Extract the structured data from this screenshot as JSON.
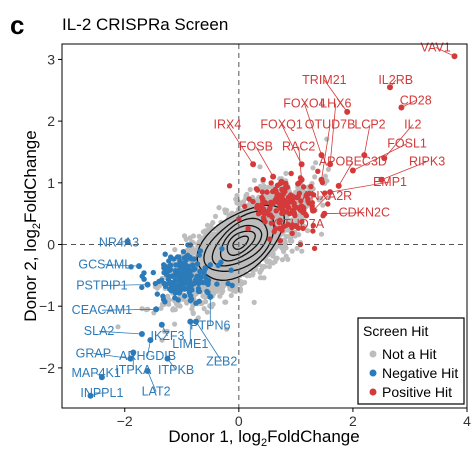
{
  "panel_letter": "c",
  "chart_data": {
    "type": "scatter",
    "title": "IL-2 CRISPRa Screen",
    "xlabel_prefix": "Donor 1, log",
    "xlabel_sub": "2",
    "xlabel_suffix": "FoldChange",
    "ylabel_prefix": "Donor 2, log",
    "ylabel_sub": "2",
    "ylabel_suffix": "FoldChange",
    "xlim": [
      -3.1,
      4.0
    ],
    "ylim": [
      -2.65,
      3.25
    ],
    "xticks": [
      -2,
      0,
      2,
      4
    ],
    "xtick_labels": [
      "−2",
      "0",
      "2",
      "4"
    ],
    "yticks": [
      -2,
      -1,
      0,
      1,
      2,
      3
    ],
    "ytick_labels": [
      "−2",
      "−1",
      "0",
      "1",
      "2",
      "3"
    ],
    "reference_lines": {
      "x": 0,
      "y": 0,
      "style": "dashed"
    },
    "grid": false,
    "legend": {
      "title": "Screen Hit",
      "placement": "bottom-right",
      "entries": [
        {
          "label": "Not a Hit",
          "color": "#bdbdbd"
        },
        {
          "label": "Negative Hit",
          "color": "#2b7bba"
        },
        {
          "label": "Positive Hit",
          "color": "#d43a3a"
        }
      ]
    },
    "colors": {
      "not_hit": "#bdbdbd",
      "negative": "#2b7bba",
      "positive": "#d43a3a",
      "contour": "#111111"
    },
    "positive_labels": [
      {
        "gene": "VAV1",
        "x": 3.78,
        "y": 3.05,
        "label_x": 3.45,
        "label_y": 3.13
      },
      {
        "gene": "IL2RB",
        "x": 2.65,
        "y": 2.55,
        "label_x": 2.75,
        "label_y": 2.6
      },
      {
        "gene": "TRIM21",
        "x": 1.9,
        "y": 2.15,
        "label_x": 1.5,
        "label_y": 2.6
      },
      {
        "gene": "CD28",
        "x": 2.85,
        "y": 2.22,
        "label_x": 3.1,
        "label_y": 2.27
      },
      {
        "gene": "FOXO4",
        "x": 1.45,
        "y": 1.45,
        "label_x": 1.15,
        "label_y": 2.22
      },
      {
        "gene": "LHX6",
        "x": 1.6,
        "y": 1.3,
        "label_x": 1.7,
        "label_y": 2.22
      },
      {
        "gene": "IRX4",
        "x": 0.25,
        "y": 1.3,
        "label_x": -0.2,
        "label_y": 1.88
      },
      {
        "gene": "FOXQ1",
        "x": 1.1,
        "y": 1.3,
        "label_x": 0.75,
        "label_y": 1.88
      },
      {
        "gene": "OTUD7B",
        "x": 1.45,
        "y": 1.05,
        "label_x": 1.6,
        "label_y": 1.88
      },
      {
        "gene": "LCP2",
        "x": 2.2,
        "y": 1.45,
        "label_x": 2.3,
        "label_y": 1.88
      },
      {
        "gene": "IL2",
        "x": 2.55,
        "y": 1.4,
        "label_x": 3.05,
        "label_y": 1.88
      },
      {
        "gene": "FOSB",
        "x": 0.6,
        "y": 1.1,
        "label_x": 0.3,
        "label_y": 1.52
      },
      {
        "gene": "RAC2",
        "x": 1.1,
        "y": 1.05,
        "label_x": 1.05,
        "label_y": 1.52
      },
      {
        "gene": "FOSL1",
        "x": 2.0,
        "y": 1.2,
        "label_x": 2.95,
        "label_y": 1.57
      },
      {
        "gene": "APOBEC3D",
        "x": 1.75,
        "y": 0.95,
        "label_x": 2.0,
        "label_y": 1.28
      },
      {
        "gene": "RIPK3",
        "x": 2.5,
        "y": 1.05,
        "label_x": 3.3,
        "label_y": 1.28
      },
      {
        "gene": "EMP1",
        "x": 1.6,
        "y": 0.85,
        "label_x": 2.65,
        "label_y": 0.95
      },
      {
        "gene": "ANXA2R",
        "x": 1.3,
        "y": 0.55,
        "label_x": 1.55,
        "label_y": 0.72
      },
      {
        "gene": "CDKN2C",
        "x": 1.5,
        "y": 0.5,
        "label_x": 2.2,
        "label_y": 0.45
      },
      {
        "gene": "OTUD7A",
        "x": 1.0,
        "y": 0.3,
        "label_x": 1.05,
        "label_y": 0.27
      }
    ],
    "negative_labels": [
      {
        "gene": "NR4A3",
        "x": -1.95,
        "y": 0.05,
        "label_x": -2.1,
        "label_y": -0.03
      },
      {
        "gene": "GCSAML",
        "x": -1.75,
        "y": -0.35,
        "label_x": -2.35,
        "label_y": -0.39
      },
      {
        "gene": "PSTPIP1",
        "x": -1.6,
        "y": -0.65,
        "label_x": -2.4,
        "label_y": -0.73
      },
      {
        "gene": "CEACAM1",
        "x": -1.45,
        "y": -1.05,
        "label_x": -2.4,
        "label_y": -1.13
      },
      {
        "gene": "SLA2",
        "x": -1.7,
        "y": -1.45,
        "label_x": -2.45,
        "label_y": -1.47
      },
      {
        "gene": "GRAP",
        "x": -1.9,
        "y": -1.85,
        "label_x": -2.55,
        "label_y": -1.83
      },
      {
        "gene": "MAP4K1",
        "x": -2.4,
        "y": -2.15,
        "label_x": -2.5,
        "label_y": -2.15
      },
      {
        "gene": "INPPL1",
        "x": -2.6,
        "y": -2.45,
        "label_x": -2.4,
        "label_y": -2.47
      },
      {
        "gene": "IKZF3",
        "x": -1.35,
        "y": -1.3,
        "label_x": -1.25,
        "label_y": -1.55
      },
      {
        "gene": "ARHGDIB",
        "x": -1.55,
        "y": -1.55,
        "label_x": -1.6,
        "label_y": -1.87
      },
      {
        "gene": "ITPKA",
        "x": -1.85,
        "y": -1.75,
        "label_x": -1.85,
        "label_y": -2.1
      },
      {
        "gene": "LAT2",
        "x": -1.6,
        "y": -2.05,
        "label_x": -1.45,
        "label_y": -2.45
      },
      {
        "gene": "ITPKB",
        "x": -1.25,
        "y": -1.85,
        "label_x": -1.1,
        "label_y": -2.1
      },
      {
        "gene": "LIME1",
        "x": -0.85,
        "y": -1.25,
        "label_x": -0.85,
        "label_y": -1.68
      },
      {
        "gene": "ZEB2",
        "x": -0.75,
        "y": -1.25,
        "label_x": -0.3,
        "label_y": -1.96
      },
      {
        "gene": "PTPN6",
        "x": -0.5,
        "y": -0.85,
        "label_x": -0.5,
        "label_y": -1.38
      }
    ]
  }
}
